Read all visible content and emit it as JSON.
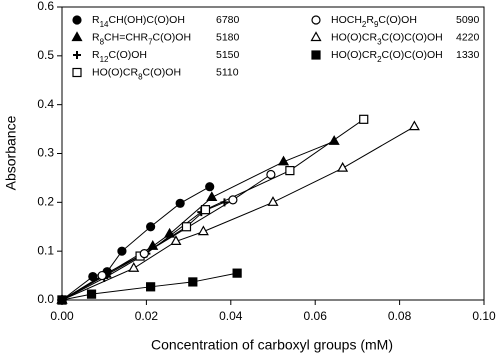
{
  "chart_data": {
    "type": "scatter",
    "xlabel": "Concentration of carboxyl groups (mM)",
    "ylabel": "Absorbance",
    "xlim": [
      0,
      0.1
    ],
    "xticks": [
      {
        "value": 0,
        "label": "0.00"
      },
      0.02,
      0.04,
      0.06,
      0.08,
      {
        "value": 0.1,
        "label": "0.10"
      }
    ],
    "ylim": [
      0,
      0.6
    ],
    "yticks": [
      {
        "value": 0,
        "label": "0.0"
      },
      0.1,
      0.2,
      0.3,
      0.4,
      0.5,
      0.6
    ],
    "color": "#000000",
    "series": [
      {
        "name": "R14CH(OH)C(O)OH",
        "number": 6780,
        "marker": "circle-filled",
        "x": [
          0,
          0.0073,
          0.0107,
          0.0142,
          0.021,
          0.028,
          0.035
        ],
        "values": [
          0,
          0.048,
          0.058,
          0.1,
          0.15,
          0.198,
          0.232
        ]
      },
      {
        "name": "R8CH=CHR7C(O)OH",
        "number": 5180,
        "marker": "triangle-filled",
        "x": [
          0,
          0.0105,
          0.0215,
          0.0255,
          0.0355,
          0.0525,
          0.0645
        ],
        "values": [
          0,
          0.053,
          0.11,
          0.135,
          0.21,
          0.283,
          0.325
        ]
      },
      {
        "name": "R12C(O)OH",
        "number": 5150,
        "marker": "plus",
        "x": [
          0,
          0.01,
          0.02,
          0.033,
          0.0385
        ],
        "values": [
          0,
          0.045,
          0.095,
          0.18,
          0.2
        ]
      },
      {
        "name": "HO(O)CR8C(O)OH",
        "number": 5110,
        "marker": "square-open",
        "x": [
          0,
          0.0185,
          0.0295,
          0.034,
          0.054,
          0.0715
        ],
        "values": [
          0,
          0.09,
          0.15,
          0.185,
          0.265,
          0.37
        ]
      },
      {
        "name": "HOCH2R9C(O)OH",
        "number": 5090,
        "marker": "circle-open",
        "x": [
          0,
          0.0095,
          0.0195,
          0.0405,
          0.0495
        ],
        "values": [
          0,
          0.05,
          0.095,
          0.205,
          0.257
        ]
      },
      {
        "name": "HO(O)CR3C(O)C(O)OH",
        "number": 4220,
        "marker": "triangle-open",
        "x": [
          0,
          0.017,
          0.027,
          0.0335,
          0.05,
          0.0665,
          0.0835
        ],
        "values": [
          0,
          0.065,
          0.12,
          0.14,
          0.2,
          0.27,
          0.355
        ]
      },
      {
        "name": "HO(O)CR2C(O)C(O)OH",
        "number": 1330,
        "marker": "square-filled",
        "x": [
          0,
          0.007,
          0.021,
          0.031,
          0.0415
        ],
        "values": [
          0,
          0.012,
          0.027,
          0.037,
          0.055
        ]
      }
    ]
  }
}
